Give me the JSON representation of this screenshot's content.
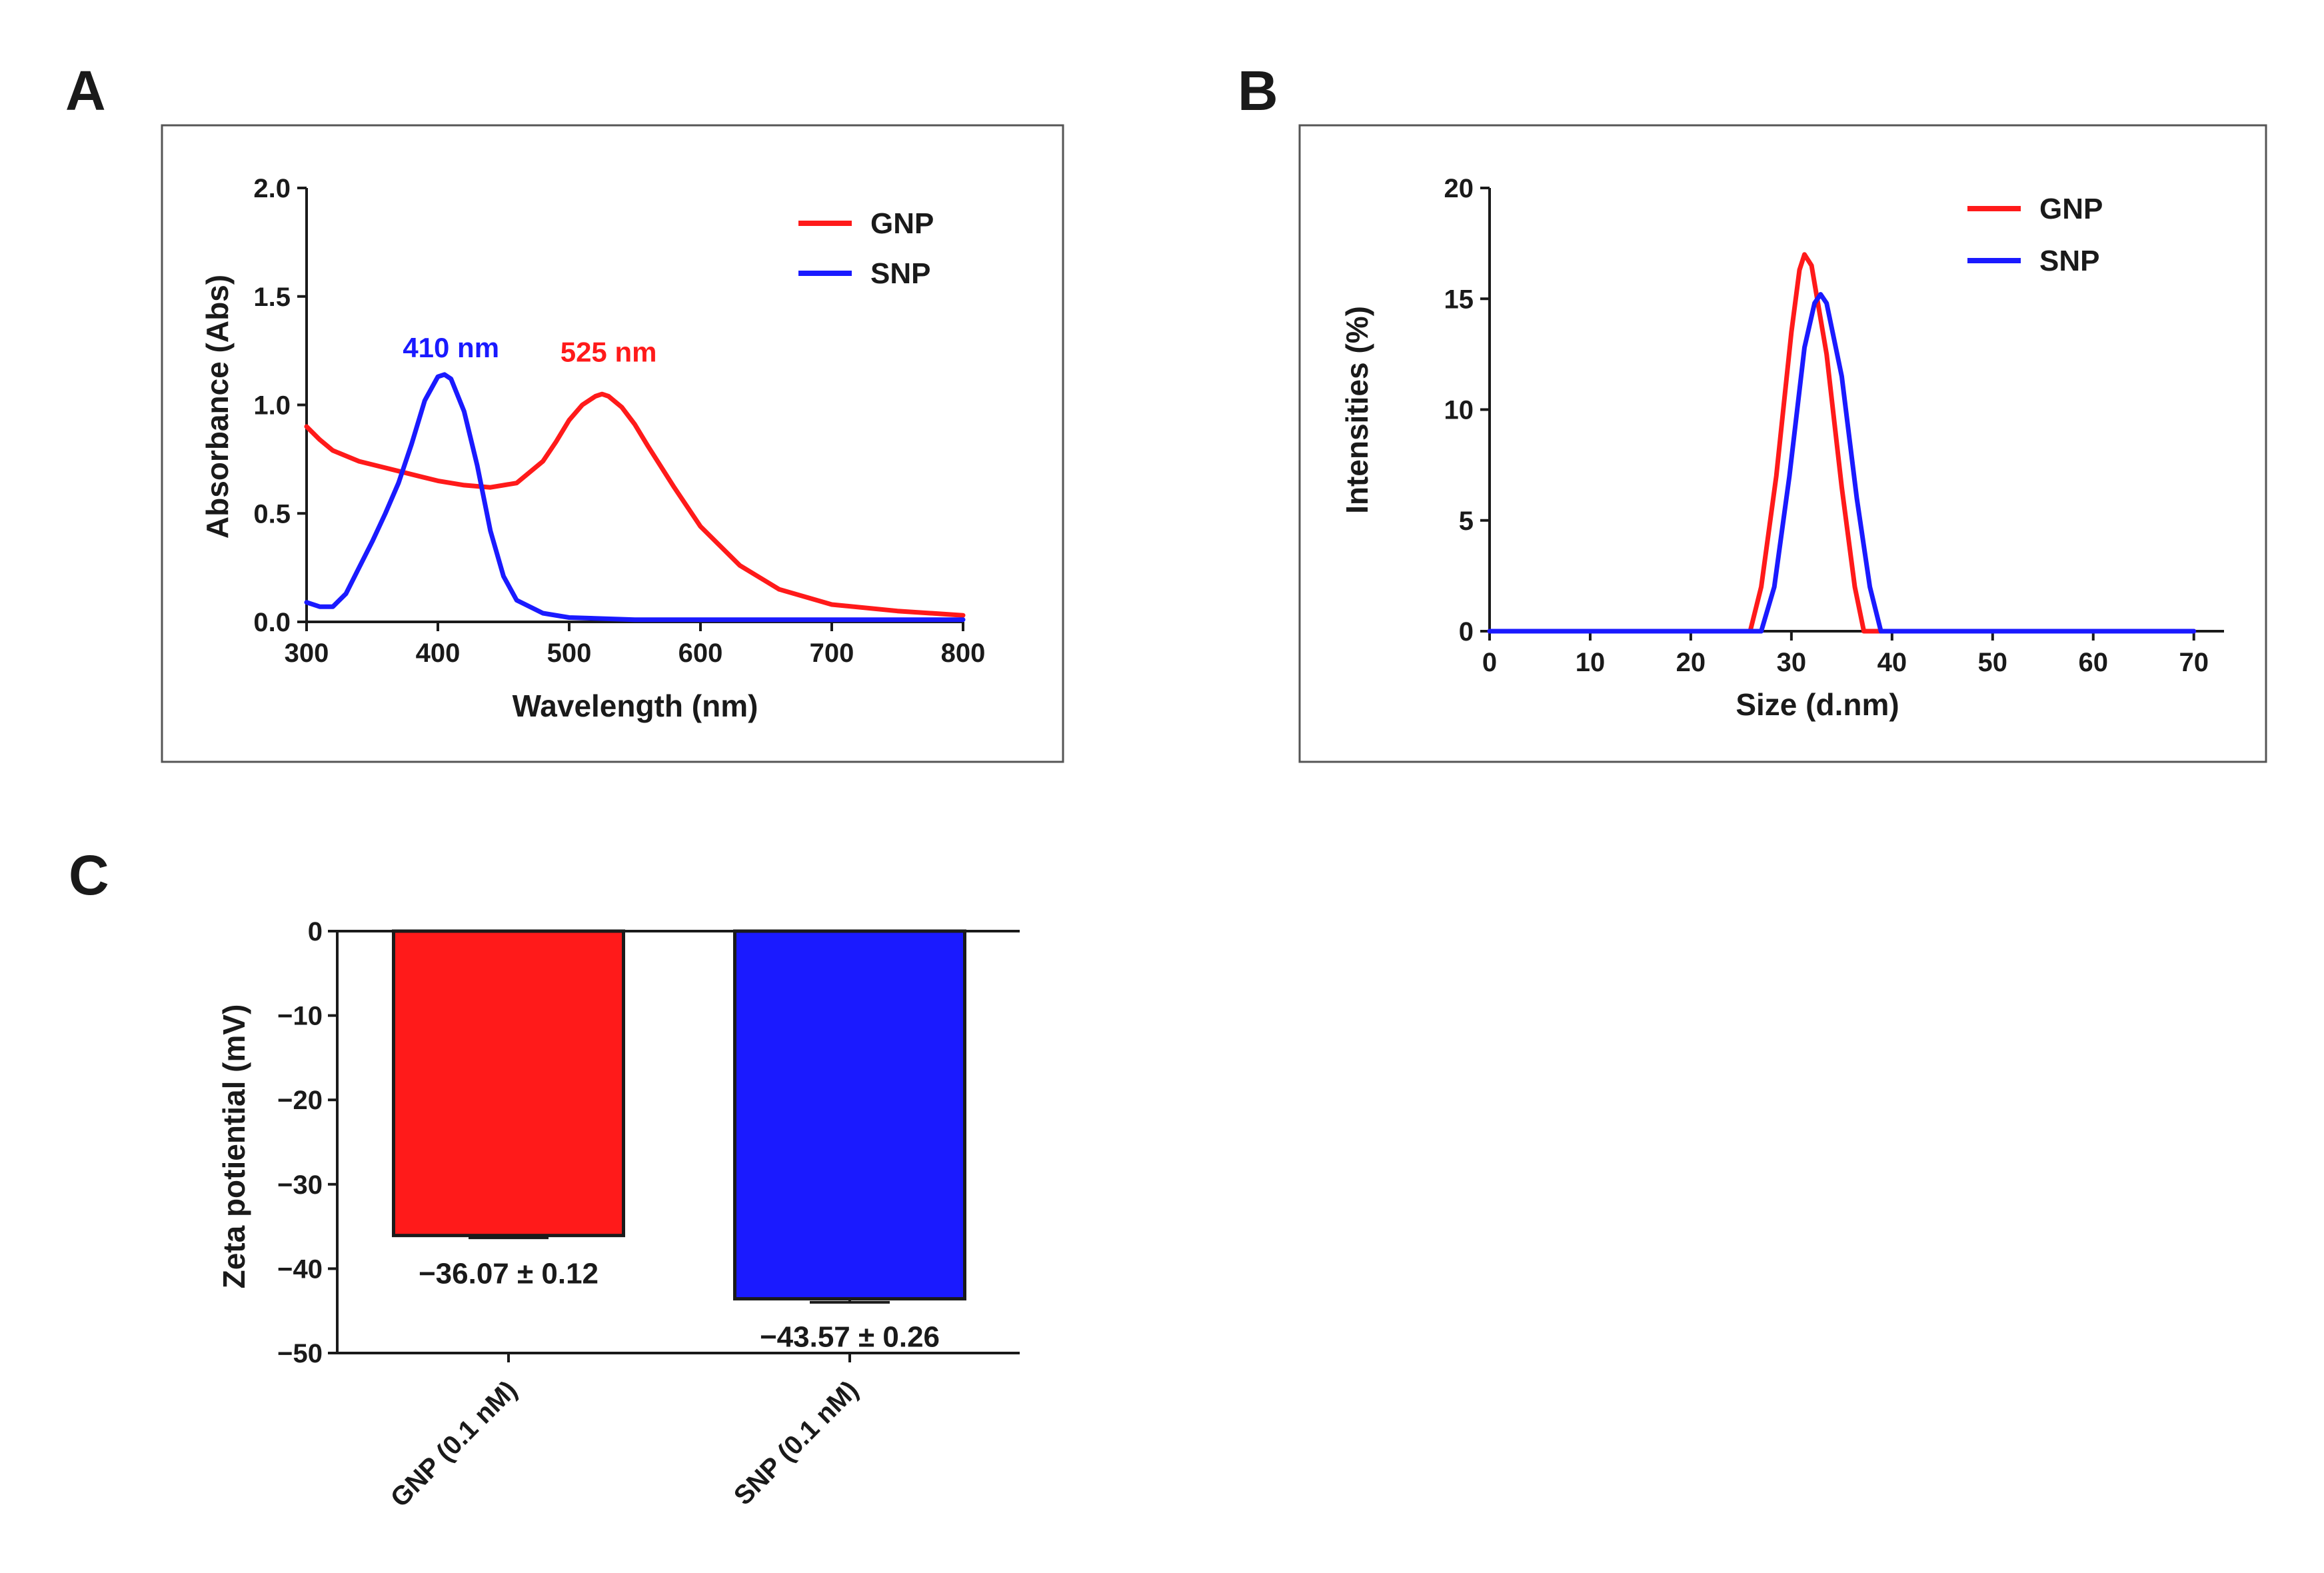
{
  "panels": {
    "A": "A",
    "B": "B",
    "C": "C"
  },
  "colors": {
    "gnp": "#ff1a1a",
    "snp": "#1a1aff",
    "axis": "#1a1a1a"
  },
  "chart_data": [
    {
      "id": "A",
      "type": "line",
      "xlabel": "Wavelength (nm)",
      "ylabel": "Absorbance (Abs)",
      "xlim": [
        300,
        800
      ],
      "ylim": [
        0,
        2.0
      ],
      "xticks": [
        300,
        400,
        500,
        600,
        700,
        800
      ],
      "yticks": [
        0.0,
        0.5,
        1.0,
        1.5,
        2.0
      ],
      "ytick_labels": [
        "0.0",
        "0.5",
        "1.0",
        "1.5",
        "2.0"
      ],
      "grid": false,
      "legend": "top-right",
      "series": [
        {
          "name": "GNP",
          "color": "#ff1a1a",
          "x": [
            300,
            310,
            320,
            340,
            360,
            380,
            400,
            420,
            440,
            460,
            480,
            490,
            500,
            510,
            520,
            525,
            530,
            540,
            550,
            560,
            580,
            600,
            630,
            660,
            700,
            750,
            800
          ],
          "y": [
            0.9,
            0.84,
            0.79,
            0.74,
            0.71,
            0.68,
            0.65,
            0.63,
            0.62,
            0.64,
            0.74,
            0.83,
            0.93,
            1.0,
            1.04,
            1.05,
            1.04,
            0.99,
            0.91,
            0.81,
            0.62,
            0.44,
            0.26,
            0.15,
            0.08,
            0.05,
            0.03
          ]
        },
        {
          "name": "SNP",
          "color": "#1a1aff",
          "x": [
            300,
            310,
            320,
            330,
            340,
            350,
            360,
            370,
            380,
            390,
            400,
            405,
            410,
            420,
            430,
            440,
            450,
            460,
            480,
            500,
            550,
            600,
            700,
            800
          ],
          "y": [
            0.09,
            0.07,
            0.07,
            0.13,
            0.25,
            0.37,
            0.5,
            0.64,
            0.82,
            1.02,
            1.13,
            1.14,
            1.12,
            0.97,
            0.72,
            0.42,
            0.21,
            0.1,
            0.04,
            0.02,
            0.01,
            0.01,
            0.01,
            0.01
          ]
        }
      ],
      "annotations": [
        {
          "text": "410 nm",
          "x": 410,
          "y": 1.22,
          "series": "SNP"
        },
        {
          "text": "525 nm",
          "x": 530,
          "y": 1.2,
          "series": "GNP"
        }
      ]
    },
    {
      "id": "B",
      "type": "line",
      "xlabel": "Size (d.nm)",
      "ylabel": "Intensities (%)",
      "xlim": [
        0,
        73
      ],
      "ylim": [
        0,
        20
      ],
      "xticks": [
        0,
        10,
        20,
        30,
        40,
        50,
        60,
        70
      ],
      "yticks": [
        0,
        5,
        10,
        15,
        20
      ],
      "ytick_labels": [
        "0",
        "5",
        "10",
        "15",
        "20"
      ],
      "grid": false,
      "legend": "top-right",
      "series": [
        {
          "name": "GNP",
          "color": "#ff1a1a",
          "x": [
            0,
            25,
            25.9,
            27.0,
            28.5,
            30.0,
            30.8,
            31.3,
            32.0,
            33.5,
            35.0,
            36.3,
            37.2,
            38.0,
            70
          ],
          "y": [
            0,
            0,
            0,
            2.0,
            7.0,
            13.5,
            16.3,
            17.0,
            16.5,
            12.5,
            6.5,
            2.0,
            0,
            0,
            0
          ]
        },
        {
          "name": "SNP",
          "color": "#1a1aff",
          "x": [
            0,
            26,
            27.0,
            28.3,
            29.8,
            31.3,
            32.3,
            32.9,
            33.5,
            35.0,
            36.5,
            37.8,
            38.9,
            40.0,
            70
          ],
          "y": [
            0,
            0,
            0,
            2.0,
            7.0,
            12.8,
            14.8,
            15.2,
            14.8,
            11.5,
            6.0,
            2.0,
            0,
            0,
            0
          ]
        }
      ]
    },
    {
      "id": "C",
      "type": "bar",
      "ylabel": "Zeta potiential (mV)",
      "ylim": [
        -50,
        0
      ],
      "yticks": [
        0,
        -10,
        -20,
        -30,
        -40,
        -50
      ],
      "ytick_labels": [
        "0",
        "−10",
        "−20",
        "−30",
        "−40",
        "−50"
      ],
      "grid": false,
      "categories": [
        "GNP (0.1 nM)",
        "SNP (0.1 nM)"
      ],
      "values": [
        -36.07,
        -43.57
      ],
      "errors": [
        0.12,
        0.26
      ],
      "colors": [
        "#ff1a1a",
        "#1a1aff"
      ],
      "value_labels": [
        "−36.07  ±  0.12",
        "−43.57 ±  0.26"
      ]
    }
  ]
}
